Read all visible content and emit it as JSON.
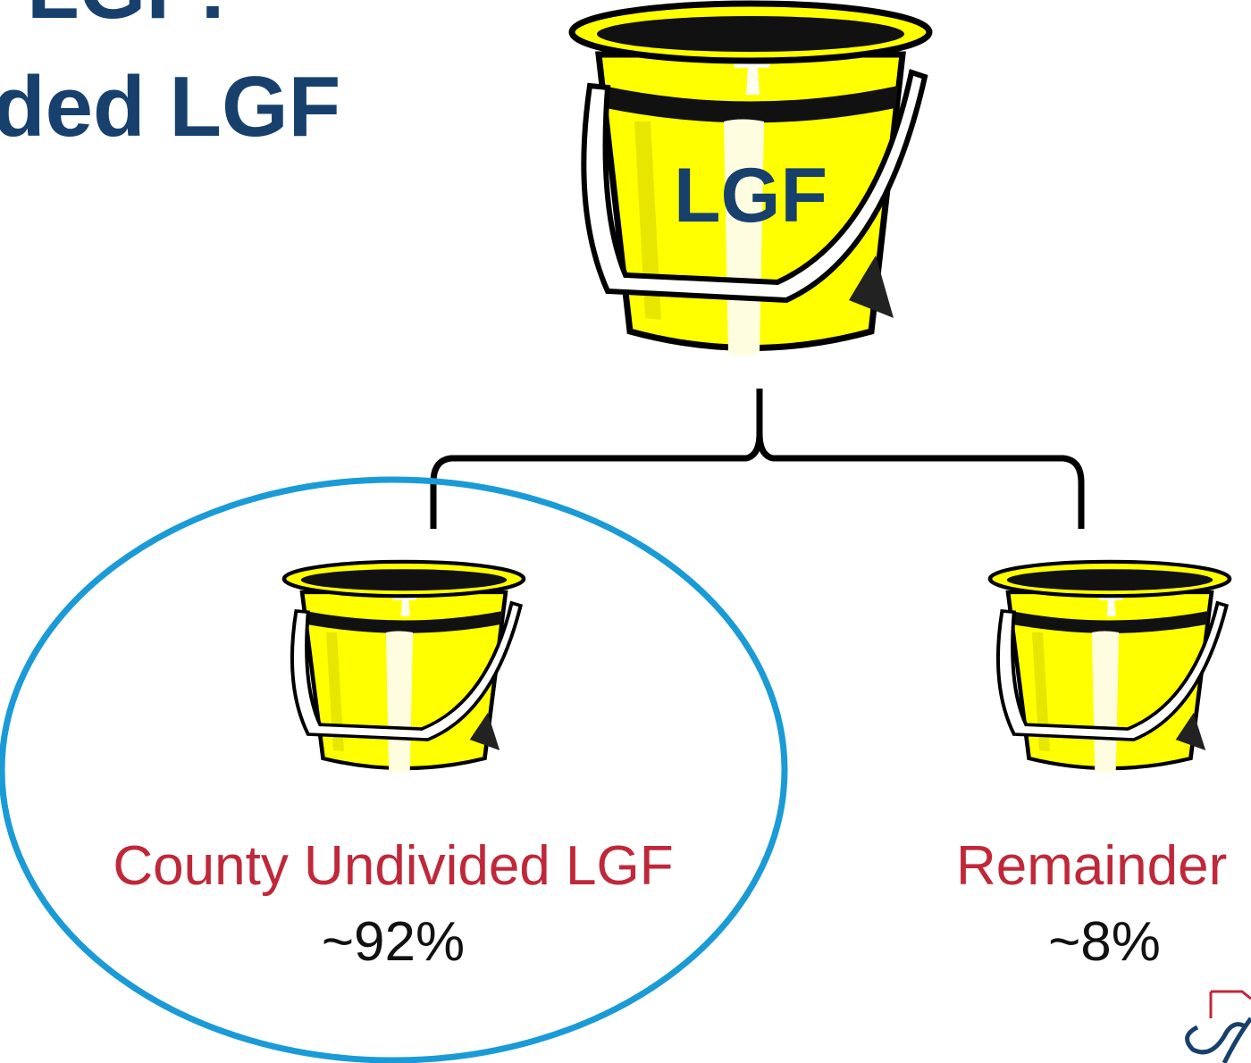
{
  "title": {
    "line1": "LGF:",
    "line2": "ded LGF"
  },
  "top_bucket": {
    "label": "LGF"
  },
  "branches": [
    {
      "label": "County Undivided LGF",
      "share": "~92%"
    },
    {
      "label": "Remainder",
      "share": "~8%"
    }
  ]
}
